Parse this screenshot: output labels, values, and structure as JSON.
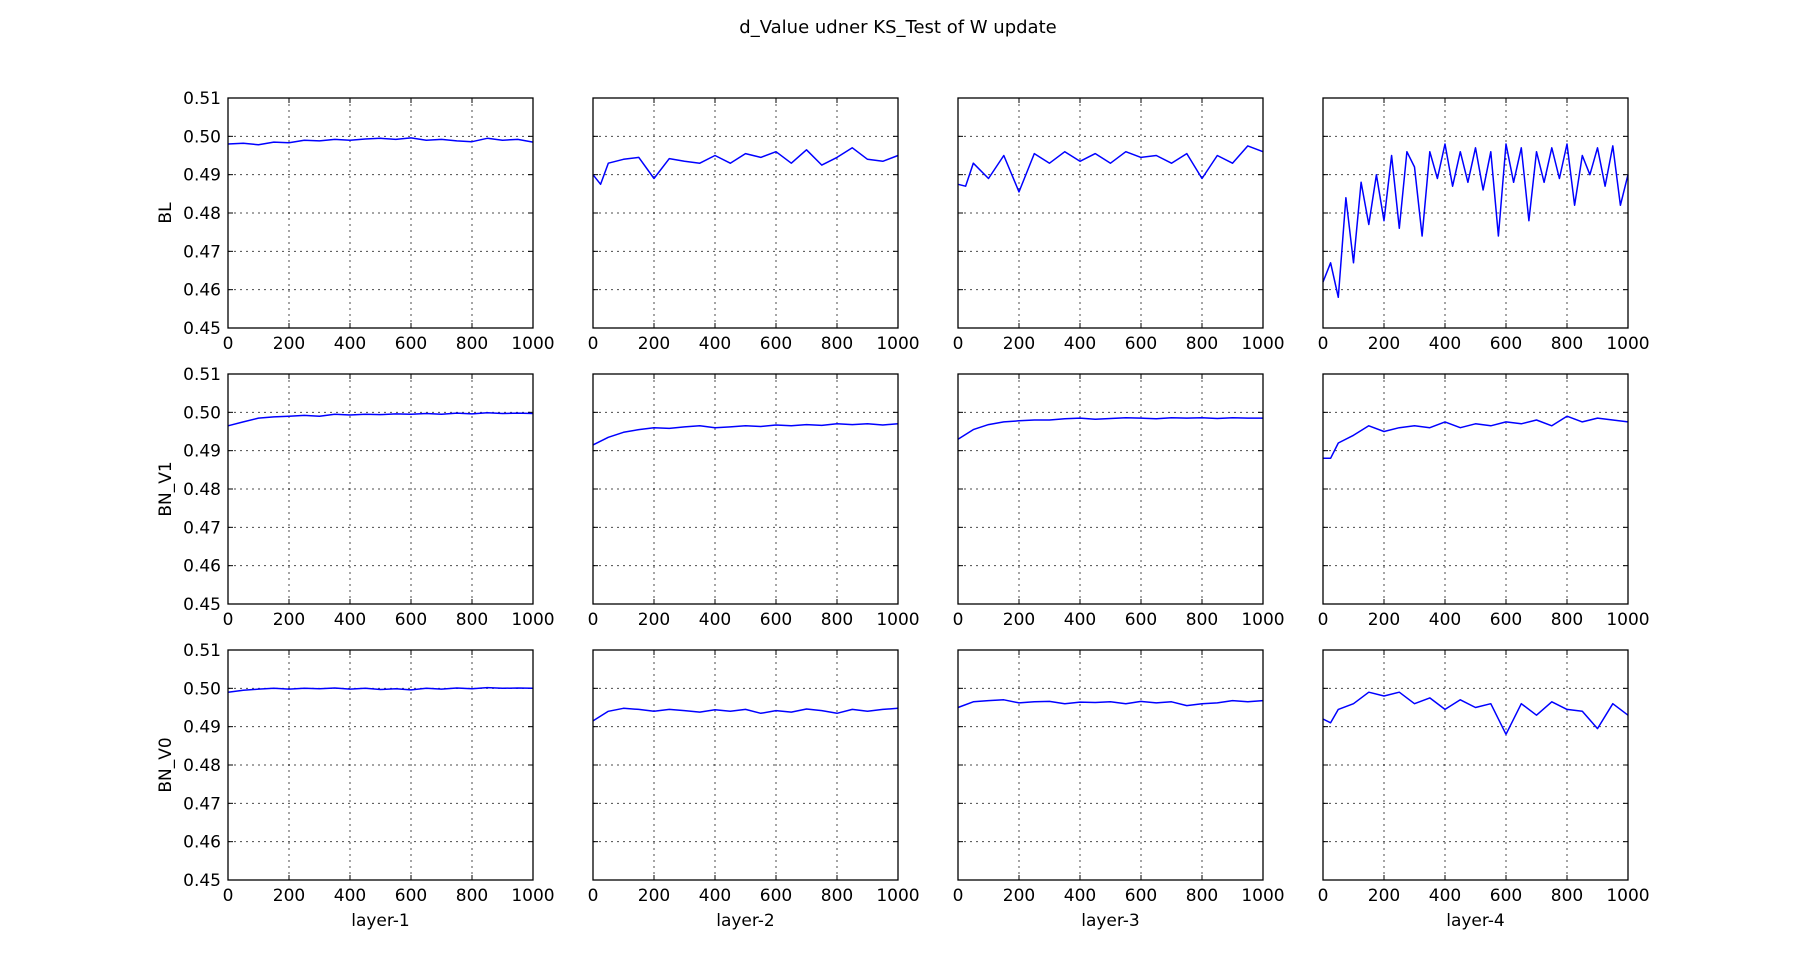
{
  "figure": {
    "title": "d_Value udner KS_Test of W update"
  },
  "chart_data": {
    "type": "line",
    "xlim": [
      0,
      1000
    ],
    "ylim": [
      0.45,
      0.51
    ],
    "xticks": [
      0,
      200,
      400,
      600,
      800,
      1000
    ],
    "xtick_labels": [
      "0",
      "200",
      "400",
      "600",
      "800",
      "1000"
    ],
    "yticks": [
      0.45,
      0.46,
      0.47,
      0.48,
      0.49,
      0.5,
      0.51
    ],
    "ytick_labels": [
      "0.45",
      "0.46",
      "0.47",
      "0.48",
      "0.49",
      "0.50",
      "0.51"
    ],
    "grid": true,
    "line_color": "#0000ff",
    "row_labels": [
      "BL",
      "BN_V1",
      "BN_V0"
    ],
    "col_labels": [
      "layer-1",
      "layer-2",
      "layer-3",
      "layer-4"
    ],
    "subplots": [
      [
        {
          "x": [
            0,
            50,
            100,
            150,
            200,
            250,
            300,
            350,
            400,
            450,
            500,
            550,
            600,
            650,
            700,
            750,
            800,
            850,
            900,
            950,
            1000
          ],
          "y": [
            0.498,
            0.4982,
            0.4978,
            0.4985,
            0.4983,
            0.499,
            0.4988,
            0.4992,
            0.499,
            0.4993,
            0.4995,
            0.4992,
            0.4996,
            0.499,
            0.4992,
            0.4988,
            0.4986,
            0.4995,
            0.499,
            0.4992,
            0.4985
          ]
        },
        {
          "x": [
            0,
            25,
            50,
            100,
            150,
            200,
            250,
            300,
            350,
            400,
            450,
            500,
            550,
            600,
            650,
            700,
            750,
            800,
            850,
            900,
            950,
            1000
          ],
          "y": [
            0.49,
            0.4875,
            0.493,
            0.494,
            0.4945,
            0.489,
            0.4942,
            0.4935,
            0.493,
            0.495,
            0.493,
            0.4955,
            0.4945,
            0.496,
            0.493,
            0.4965,
            0.4925,
            0.4945,
            0.497,
            0.494,
            0.4935,
            0.495
          ]
        },
        {
          "x": [
            0,
            25,
            50,
            100,
            150,
            200,
            250,
            300,
            350,
            400,
            450,
            500,
            550,
            600,
            650,
            700,
            750,
            800,
            850,
            900,
            950,
            1000
          ],
          "y": [
            0.4875,
            0.487,
            0.493,
            0.489,
            0.495,
            0.4855,
            0.4955,
            0.493,
            0.496,
            0.4935,
            0.4955,
            0.493,
            0.496,
            0.4945,
            0.495,
            0.493,
            0.4955,
            0.489,
            0.495,
            0.493,
            0.4975,
            0.496
          ]
        },
        {
          "x": [
            0,
            25,
            50,
            75,
            100,
            125,
            150,
            175,
            200,
            225,
            250,
            275,
            300,
            325,
            350,
            375,
            400,
            425,
            450,
            475,
            500,
            525,
            550,
            575,
            600,
            625,
            650,
            675,
            700,
            725,
            750,
            775,
            800,
            825,
            850,
            875,
            900,
            925,
            950,
            975,
            1000
          ],
          "y": [
            0.462,
            0.467,
            0.458,
            0.484,
            0.467,
            0.488,
            0.477,
            0.49,
            0.478,
            0.495,
            0.476,
            0.496,
            0.492,
            0.474,
            0.496,
            0.489,
            0.498,
            0.487,
            0.496,
            0.488,
            0.497,
            0.486,
            0.496,
            0.474,
            0.498,
            0.488,
            0.497,
            0.478,
            0.496,
            0.488,
            0.497,
            0.489,
            0.498,
            0.482,
            0.495,
            0.49,
            0.497,
            0.487,
            0.4975,
            0.482,
            0.49
          ]
        }
      ],
      [
        {
          "x": [
            0,
            50,
            100,
            150,
            200,
            250,
            300,
            350,
            400,
            450,
            500,
            550,
            600,
            650,
            700,
            750,
            800,
            850,
            900,
            950,
            1000
          ],
          "y": [
            0.4965,
            0.4975,
            0.4985,
            0.4988,
            0.499,
            0.4992,
            0.499,
            0.4995,
            0.4993,
            0.4995,
            0.4994,
            0.4996,
            0.4995,
            0.4997,
            0.4995,
            0.4998,
            0.4996,
            0.4999,
            0.4997,
            0.4998,
            0.4997
          ]
        },
        {
          "x": [
            0,
            50,
            100,
            150,
            200,
            250,
            300,
            350,
            400,
            450,
            500,
            550,
            600,
            650,
            700,
            750,
            800,
            850,
            900,
            950,
            1000
          ],
          "y": [
            0.4915,
            0.4935,
            0.4948,
            0.4955,
            0.496,
            0.4958,
            0.4962,
            0.4965,
            0.496,
            0.4962,
            0.4965,
            0.4963,
            0.4967,
            0.4965,
            0.4968,
            0.4966,
            0.497,
            0.4968,
            0.497,
            0.4967,
            0.497
          ]
        },
        {
          "x": [
            0,
            50,
            100,
            150,
            200,
            250,
            300,
            350,
            400,
            450,
            500,
            550,
            600,
            650,
            700,
            750,
            800,
            850,
            900,
            950,
            1000
          ],
          "y": [
            0.493,
            0.4955,
            0.4968,
            0.4975,
            0.4978,
            0.498,
            0.498,
            0.4983,
            0.4985,
            0.4982,
            0.4984,
            0.4986,
            0.4985,
            0.4983,
            0.4986,
            0.4985,
            0.4986,
            0.4984,
            0.4986,
            0.4985,
            0.4985
          ]
        },
        {
          "x": [
            0,
            25,
            50,
            100,
            150,
            200,
            250,
            300,
            350,
            400,
            450,
            500,
            550,
            600,
            650,
            700,
            750,
            800,
            850,
            900,
            950,
            1000
          ],
          "y": [
            0.488,
            0.488,
            0.492,
            0.494,
            0.4965,
            0.495,
            0.496,
            0.4965,
            0.496,
            0.4975,
            0.496,
            0.497,
            0.4965,
            0.4975,
            0.497,
            0.498,
            0.4965,
            0.499,
            0.4975,
            0.4985,
            0.498,
            0.4975
          ]
        }
      ],
      [
        {
          "x": [
            0,
            50,
            100,
            150,
            200,
            250,
            300,
            350,
            400,
            450,
            500,
            550,
            600,
            650,
            700,
            750,
            800,
            850,
            900,
            950,
            1000
          ],
          "y": [
            0.499,
            0.4995,
            0.4998,
            0.5,
            0.4998,
            0.5,
            0.4999,
            0.5001,
            0.4998,
            0.5,
            0.4997,
            0.4999,
            0.4996,
            0.5,
            0.4998,
            0.5001,
            0.4999,
            0.5002,
            0.5,
            0.5001,
            0.5
          ]
        },
        {
          "x": [
            0,
            50,
            100,
            150,
            200,
            250,
            300,
            350,
            400,
            450,
            500,
            550,
            600,
            650,
            700,
            750,
            800,
            850,
            900,
            950,
            1000
          ],
          "y": [
            0.4915,
            0.494,
            0.4948,
            0.4945,
            0.494,
            0.4945,
            0.4942,
            0.4938,
            0.4944,
            0.494,
            0.4945,
            0.4935,
            0.4942,
            0.4938,
            0.4946,
            0.4942,
            0.4935,
            0.4945,
            0.494,
            0.4945,
            0.4948
          ]
        },
        {
          "x": [
            0,
            50,
            100,
            150,
            200,
            250,
            300,
            350,
            400,
            450,
            500,
            550,
            600,
            650,
            700,
            750,
            800,
            850,
            900,
            950,
            1000
          ],
          "y": [
            0.495,
            0.4965,
            0.4968,
            0.497,
            0.4962,
            0.4965,
            0.4966,
            0.496,
            0.4964,
            0.4963,
            0.4965,
            0.496,
            0.4966,
            0.4962,
            0.4965,
            0.4955,
            0.496,
            0.4962,
            0.4968,
            0.4965,
            0.4968
          ]
        },
        {
          "x": [
            0,
            25,
            50,
            100,
            150,
            200,
            250,
            300,
            350,
            400,
            450,
            500,
            550,
            600,
            650,
            700,
            750,
            800,
            850,
            900,
            950,
            1000
          ],
          "y": [
            0.492,
            0.491,
            0.4945,
            0.496,
            0.499,
            0.498,
            0.499,
            0.496,
            0.4975,
            0.4945,
            0.497,
            0.495,
            0.496,
            0.488,
            0.496,
            0.493,
            0.4965,
            0.4945,
            0.494,
            0.4895,
            0.496,
            0.493
          ]
        }
      ]
    ]
  }
}
